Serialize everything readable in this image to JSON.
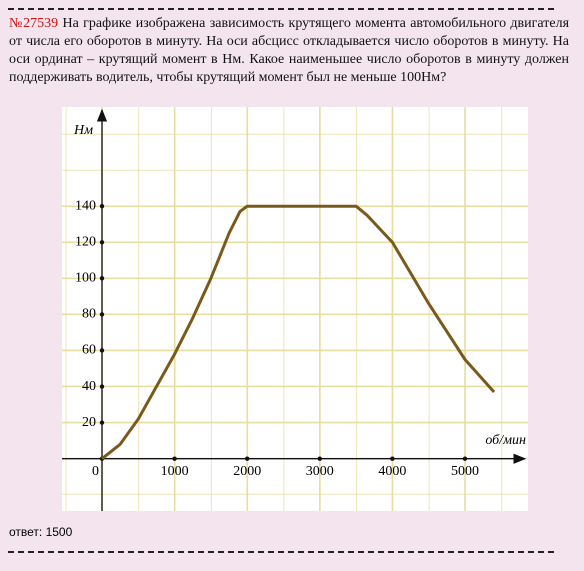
{
  "problem": {
    "number": "№27539",
    "text": "На графике изображена зависимость крутящего момента автомобильного двигателя от числа его оборотов в минуту. На оси абсцисс откладывается число оборотов в минуту. На оси ординат – крутящий момент в Нм. Какое наименьшее число оборотов в минуту должен поддерживать водитель, чтобы крутящий момент был не меньше 100Нм?"
  },
  "chart_data": {
    "type": "line",
    "x_label": "об/мин",
    "y_label": "Нм",
    "x": [
      0,
      250,
      500,
      750,
      1000,
      1250,
      1500,
      1750,
      1900,
      2000,
      2500,
      3000,
      3500,
      3650,
      4000,
      4500,
      5000,
      5400
    ],
    "series": [
      {
        "color": "#7a5a1c",
        "values": [
          0,
          8,
          22,
          40,
          58,
          78,
          100,
          125,
          137,
          140,
          140,
          140,
          140,
          135,
          120,
          86,
          55,
          37
        ]
      }
    ],
    "xlim": [
      -551,
      5868
    ],
    "ylim": [
      -29,
      195
    ],
    "xticks": [
      0,
      1000,
      2000,
      3000,
      4000,
      5000
    ],
    "yticks": [
      20,
      40,
      60,
      80,
      100,
      120,
      140
    ],
    "grid": true
  },
  "answer": "ответ: 1500"
}
